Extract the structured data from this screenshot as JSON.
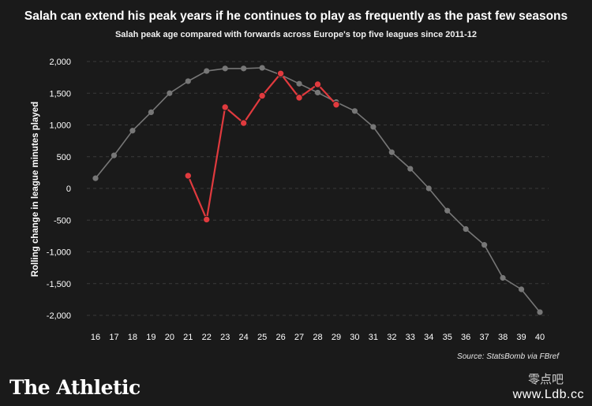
{
  "header": {
    "title": "Salah can extend his peak years if he continues to play as frequently as the past few seasons",
    "subtitle": "Salah peak age compared with forwards across Europe's top five leagues since 2011-12"
  },
  "footer": {
    "source": "Source: StatsBomb via FBref",
    "brand": "The Athletic",
    "watermark_cn": "零点吧",
    "watermark_url": "www.Ldb.cc"
  },
  "colors": {
    "background": "#1a1a1a",
    "forwards_series": "#777777",
    "salah_series": "#e03a3e",
    "grid": "#3a3a3a"
  },
  "chart_data": {
    "type": "line",
    "title": "Salah can extend his peak years if he continues to play as frequently as the past few seasons",
    "subtitle": "Salah peak age compared with forwards across Europe's top five leagues since 2011-12",
    "xlabel": "",
    "ylabel": "Rolling change in league minutes played",
    "xlim": [
      16,
      40
    ],
    "ylim": [
      -2000,
      2000
    ],
    "xticks": [
      "16",
      "17",
      "18",
      "19",
      "20",
      "21",
      "22",
      "23",
      "24",
      "25",
      "26",
      "27",
      "28",
      "29",
      "30",
      "31",
      "32",
      "33",
      "34",
      "35",
      "36",
      "37",
      "38",
      "39",
      "40"
    ],
    "yticks": [
      "2,000",
      "1,500",
      "1,000",
      "500",
      "0",
      "-500",
      "-1,000",
      "-1,500",
      "-2,000"
    ],
    "ytick_values": [
      2000,
      1500,
      1000,
      500,
      0,
      -500,
      -1000,
      -1500,
      -2000
    ],
    "grid": true,
    "legend": "none",
    "series": [
      {
        "key": "forwards",
        "color": "#777777",
        "x": [
          16,
          17,
          18,
          19,
          20,
          21,
          22,
          23,
          24,
          25,
          26,
          27,
          28,
          29,
          30,
          31,
          32,
          33,
          34,
          35,
          36,
          37,
          38,
          39,
          40
        ],
        "y": [
          160,
          520,
          910,
          1200,
          1500,
          1690,
          1850,
          1890,
          1890,
          1900,
          1790,
          1650,
          1510,
          1360,
          1220,
          970,
          570,
          310,
          0,
          -350,
          -640,
          -890,
          -1410,
          -1590,
          -1950
        ]
      },
      {
        "key": "salah",
        "color": "#e03a3e",
        "x": [
          21,
          22,
          23,
          24,
          25,
          26,
          27,
          28,
          29
        ],
        "y": [
          200,
          -490,
          1280,
          1030,
          1460,
          1810,
          1430,
          1640,
          1320
        ]
      }
    ]
  }
}
